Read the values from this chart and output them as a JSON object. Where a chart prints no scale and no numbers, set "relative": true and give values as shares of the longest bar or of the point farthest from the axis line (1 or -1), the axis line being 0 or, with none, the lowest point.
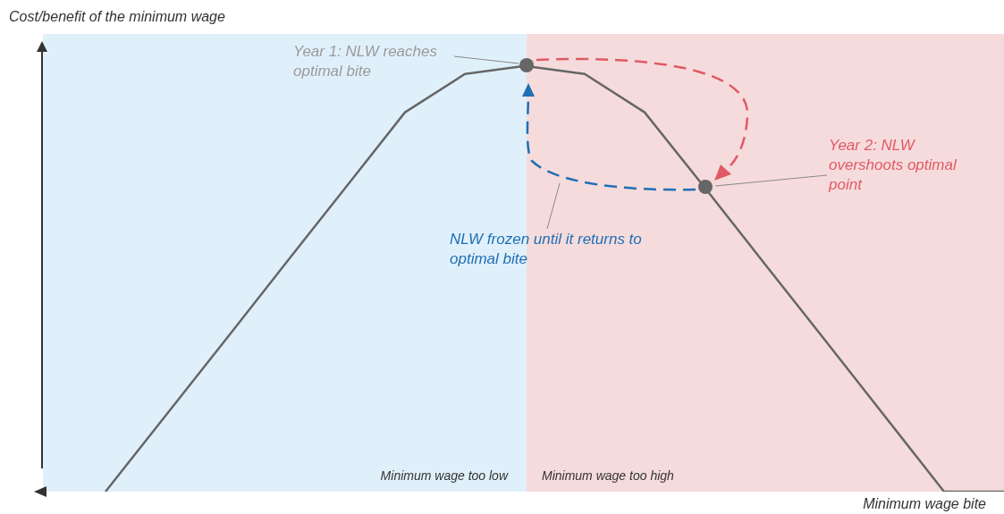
{
  "chart_data": {
    "type": "line",
    "relative": true,
    "ylabel": "Cost/benefit of the minimum wage",
    "xlabel": "Minimum wage bite",
    "categories": [
      null,
      null,
      null,
      null,
      null,
      null,
      null,
      null,
      null,
      null,
      null,
      null,
      null,
      null,
      null,
      null
    ],
    "series": [
      {
        "color": "#666666",
        "values": [
          0,
          0.178,
          0.356,
          0.535,
          0.713,
          0.891,
          0.981,
          1,
          0.981,
          0.891,
          0.715,
          0.536,
          0.358,
          0.179,
          0,
          0
        ]
      }
    ],
    "annotations": [
      "Year 1: NLW reaches optimal bite",
      "Year 2: NLW overshoots optimal point",
      "NLW frozen until it returns to optimal bite",
      "Minimum wage too low",
      "Minimum wage too high"
    ],
    "legend": false,
    "grid": false,
    "marker": "none",
    "line_style": "solid"
  }
}
